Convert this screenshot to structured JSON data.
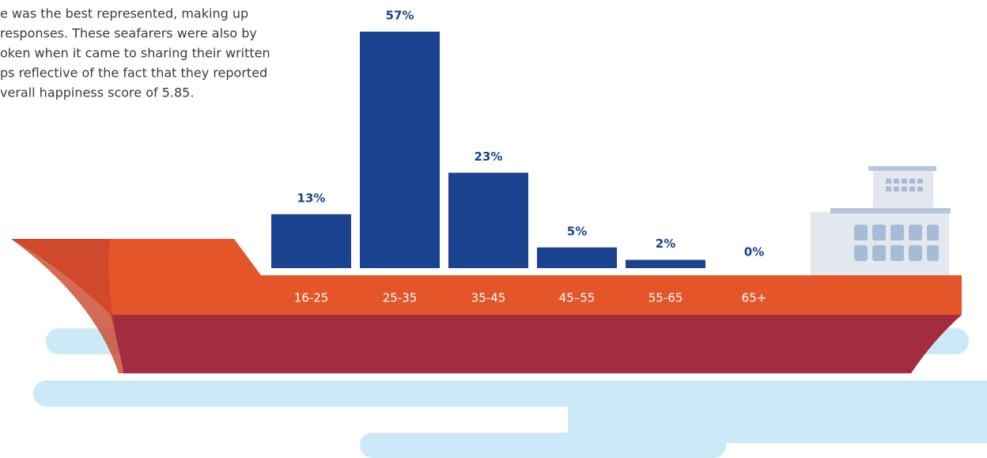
{
  "description_lines": [
    "e was the best represented, making up",
    " responses. These seafarers were also by",
    "oken when it came to sharing their written",
    "ps reflective of the fact that they reported",
    "verall happiness score of 5.85."
  ],
  "chart_data": {
    "type": "bar",
    "categories": [
      "16-25",
      "25-35",
      "35-45",
      "45–55",
      "55-65",
      "65+"
    ],
    "values": [
      13,
      57,
      23,
      5,
      2,
      0
    ],
    "value_labels": [
      "13%",
      "57%",
      "23%",
      "5%",
      "2%",
      "0%"
    ],
    "color": "#1b428e"
  }
}
